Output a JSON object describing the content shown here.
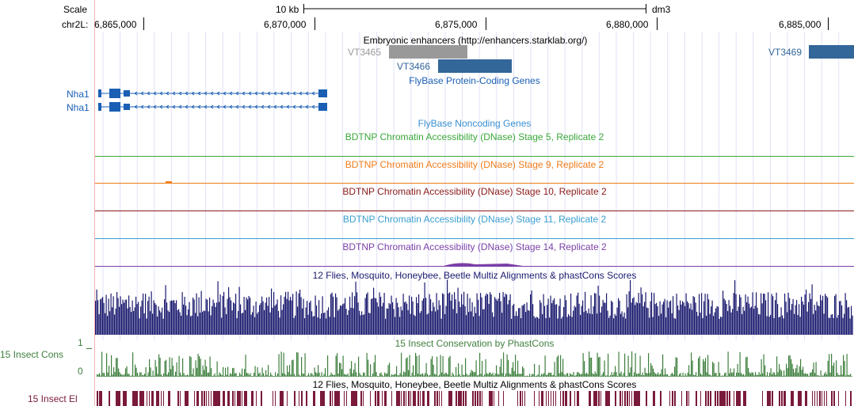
{
  "ruler": {
    "scale_label": "Scale",
    "scale_bar_label": "10 kb",
    "assembly": "dm3",
    "chrom_label": "chr2L:",
    "ticks": [
      "6,865,000",
      "6,870,000",
      "6,875,000",
      "6,880,000",
      "6,885,000"
    ]
  },
  "tracks": {
    "enhancers": {
      "title": "Embryonic enhancers (http://enhancers.starklab.org/)",
      "items": [
        {
          "name": "VT3465",
          "color": "#999999"
        },
        {
          "name": "VT3466",
          "color": "#336699"
        },
        {
          "name": "VT3469",
          "color": "#336699"
        }
      ]
    },
    "flybase_coding": {
      "title": "FlyBase Protein-Coding Genes",
      "genes": [
        "Nha1",
        "Nha1"
      ],
      "color": "#1a5fb4"
    },
    "flybase_noncoding": {
      "title": "FlyBase Noncoding Genes"
    },
    "dnase": [
      {
        "title": "BDTNP Chromatin Accessibility (DNase) Stage 5, Replicate 2",
        "color": "#3aa83a"
      },
      {
        "title": "BDTNP Chromatin Accessibility (DNase) Stage 9, Replicate 2",
        "color": "#f07c1a"
      },
      {
        "title": "BDTNP Chromatin Accessibility (DNase) Stage 10, Replicate 2",
        "color": "#8b1a1a"
      },
      {
        "title": "BDTNP Chromatin Accessibility (DNase) Stage 11, Replicate 2",
        "color": "#3a9fd0"
      },
      {
        "title": "BDTNP Chromatin Accessibility (DNase) Stage 14, Replicate 2",
        "color": "#7a3fa8"
      }
    ],
    "multiz": {
      "title": "12 Flies, Mosquito, Honeybee, Beetle Multiz Alignments & phastCons Scores",
      "color": "#1a1a6e"
    },
    "phastcons": {
      "title": "15 Insect Conservation by PhastCons",
      "side_label": "15 Insect Cons",
      "axis_max": "1",
      "axis_min": "0",
      "color": "#3f7f3f"
    },
    "elements": {
      "title": "12 Flies, Mosquito, Honeybee, Beetle Multiz Alignments & phastCons Scores",
      "side_label": "15 Insect El",
      "color": "#7a1a3a"
    }
  }
}
